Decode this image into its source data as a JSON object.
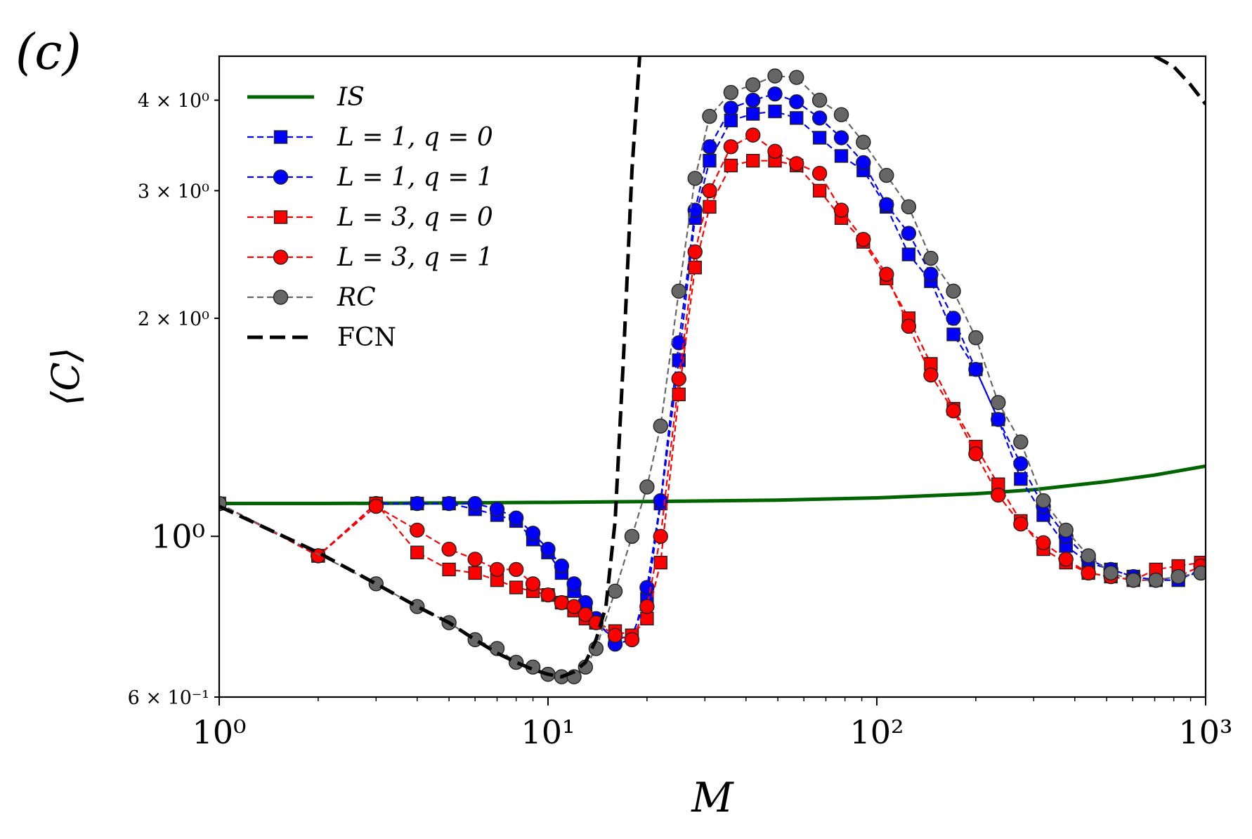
{
  "panel_label": "(c)",
  "chart_data": {
    "type": "line",
    "x_scale": "log",
    "y_scale": "log",
    "xlabel": "M",
    "ylabel": "⟨C⟩",
    "xlim": [
      1,
      1000
    ],
    "ylim": [
      0.6,
      4.6
    ],
    "x_ticks": [
      {
        "value": 1,
        "label": "10⁰"
      },
      {
        "value": 10,
        "label": "10¹"
      },
      {
        "value": 100,
        "label": "10²"
      },
      {
        "value": 1000,
        "label": "10³"
      }
    ],
    "y_ticks": [
      {
        "value": 0.6,
        "label": "6 × 10⁻¹"
      },
      {
        "value": 1,
        "label": "10⁰"
      },
      {
        "value": 2,
        "label": "2 × 10⁰"
      },
      {
        "value": 3,
        "label": "3 × 10⁰"
      },
      {
        "value": 4,
        "label": "4 × 10⁰"
      }
    ],
    "series": [
      {
        "name": "IS",
        "color": "#006400",
        "style": "solid",
        "marker": "none",
        "x": [
          1,
          2,
          5,
          10,
          20,
          50,
          100,
          200,
          300,
          500,
          700,
          1000
        ],
        "y": [
          1.11,
          1.11,
          1.112,
          1.114,
          1.117,
          1.122,
          1.13,
          1.145,
          1.16,
          1.19,
          1.215,
          1.25
        ]
      },
      {
        "name": "L = 1,  q = 0",
        "color": "#0000ff",
        "style": "dashed",
        "marker": "square",
        "x": [
          1,
          2,
          3,
          4,
          5,
          6,
          7,
          8,
          9,
          10,
          11,
          12,
          13,
          14,
          16,
          18,
          20,
          22,
          25,
          28,
          31,
          36,
          42,
          49,
          57,
          67,
          78,
          91,
          107,
          125,
          146,
          171,
          200,
          234,
          274,
          321,
          376,
          440,
          515,
          603,
          706,
          826,
          967
        ],
        "y": [
          1.11,
          0.94,
          1.11,
          1.11,
          1.11,
          1.09,
          1.07,
          1.05,
          0.99,
          0.95,
          0.89,
          0.84,
          0.79,
          0.76,
          0.72,
          0.73,
          0.82,
          1.11,
          1.75,
          2.75,
          3.3,
          3.75,
          3.83,
          3.86,
          3.78,
          3.55,
          3.35,
          3.2,
          2.85,
          2.45,
          2.25,
          1.9,
          1.7,
          1.45,
          1.2,
          1.07,
          0.97,
          0.92,
          0.9,
          0.88,
          0.87,
          0.87,
          0.9
        ]
      },
      {
        "name": "L = 1,  q = 1",
        "color": "#0000ff",
        "style": "dashed",
        "marker": "circle",
        "x": [
          1,
          2,
          3,
          4,
          5,
          6,
          7,
          8,
          9,
          10,
          11,
          12,
          13,
          14,
          16,
          18,
          20,
          22,
          25,
          28,
          31,
          36,
          42,
          49,
          57,
          67,
          78,
          91,
          107,
          125,
          146,
          171,
          200,
          234,
          274,
          321,
          376,
          440,
          515,
          603,
          706,
          826,
          967
        ],
        "y": [
          1.11,
          0.94,
          1.11,
          1.11,
          1.11,
          1.11,
          1.09,
          1.06,
          1.01,
          0.96,
          0.91,
          0.86,
          0.81,
          0.77,
          0.71,
          0.72,
          0.85,
          1.12,
          1.85,
          2.82,
          3.45,
          3.9,
          4.0,
          4.08,
          3.98,
          3.78,
          3.55,
          3.28,
          2.87,
          2.62,
          2.3,
          2.0,
          1.7,
          1.45,
          1.26,
          1.1,
          1.0,
          0.93,
          0.9,
          0.88,
          0.87,
          0.88,
          0.89
        ]
      },
      {
        "name": "L = 3,  q = 0",
        "color": "#ff0000",
        "style": "dashed",
        "marker": "square",
        "x": [
          1,
          2,
          3,
          4,
          5,
          6,
          7,
          8,
          9,
          10,
          11,
          12,
          13,
          14,
          16,
          18,
          20,
          22,
          25,
          28,
          31,
          36,
          42,
          49,
          57,
          67,
          78,
          91,
          107,
          125,
          146,
          171,
          200,
          234,
          274,
          321,
          376,
          440,
          515,
          603,
          706,
          826,
          967
        ],
        "y": [
          1.11,
          0.94,
          1.11,
          0.95,
          0.9,
          0.89,
          0.87,
          0.85,
          0.84,
          0.83,
          0.81,
          0.79,
          0.77,
          0.76,
          0.74,
          0.73,
          0.77,
          0.92,
          1.57,
          2.35,
          2.85,
          3.25,
          3.3,
          3.3,
          3.25,
          3.0,
          2.75,
          2.55,
          2.27,
          2.0,
          1.73,
          1.5,
          1.33,
          1.18,
          1.05,
          0.96,
          0.92,
          0.89,
          0.88,
          0.87,
          0.9,
          0.91,
          0.92
        ]
      },
      {
        "name": "L = 3,  q = 1",
        "color": "#ff0000",
        "style": "dashed",
        "marker": "circle",
        "x": [
          1,
          2,
          3,
          4,
          5,
          6,
          7,
          8,
          9,
          10,
          11,
          12,
          13,
          14,
          16,
          18,
          20,
          22,
          25,
          28,
          31,
          36,
          42,
          49,
          57,
          67,
          78,
          91,
          107,
          125,
          146,
          171,
          200,
          234,
          274,
          321,
          376,
          440,
          515,
          603,
          706,
          826,
          967
        ],
        "y": [
          1.11,
          0.94,
          1.1,
          1.02,
          0.96,
          0.93,
          0.9,
          0.9,
          0.86,
          0.83,
          0.81,
          0.8,
          0.78,
          0.76,
          0.73,
          0.72,
          0.8,
          1.0,
          1.65,
          2.47,
          3.0,
          3.45,
          3.58,
          3.4,
          3.27,
          3.17,
          2.82,
          2.57,
          2.3,
          1.95,
          1.67,
          1.49,
          1.3,
          1.14,
          1.04,
          0.98,
          0.93,
          0.89,
          0.88,
          0.87,
          0.87,
          0.88,
          0.91
        ]
      },
      {
        "name": "RC",
        "color": "#666666",
        "style": "dashed",
        "marker": "circle",
        "x": [
          1,
          3,
          4,
          5,
          6,
          7,
          8,
          9,
          10,
          11,
          12,
          13,
          14,
          16,
          18,
          20,
          22,
          25,
          28,
          31,
          36,
          42,
          49,
          57,
          67,
          78,
          91,
          107,
          125,
          146,
          171,
          200,
          234,
          274,
          321,
          376,
          440,
          515,
          603,
          706,
          826,
          967
        ],
        "y": [
          1.11,
          0.86,
          0.8,
          0.76,
          0.72,
          0.7,
          0.67,
          0.66,
          0.645,
          0.64,
          0.64,
          0.66,
          0.7,
          0.84,
          1.0,
          1.17,
          1.42,
          2.18,
          3.12,
          3.8,
          4.1,
          4.2,
          4.32,
          4.3,
          4.0,
          3.82,
          3.5,
          3.15,
          2.85,
          2.42,
          2.18,
          1.88,
          1.53,
          1.35,
          1.12,
          1.02,
          0.94,
          0.89,
          0.87,
          0.87,
          0.88,
          0.89
        ]
      },
      {
        "name": "FCN",
        "color": "#000000",
        "style": "bigdash",
        "marker": "none",
        "x": [
          1,
          2,
          3,
          4,
          5,
          6,
          7,
          8,
          9,
          10,
          11,
          12,
          13,
          14,
          15,
          16,
          17,
          18,
          19,
          700,
          800,
          900,
          1000
        ],
        "y": [
          1.1,
          0.95,
          0.86,
          0.8,
          0.76,
          0.72,
          0.69,
          0.67,
          0.655,
          0.645,
          0.64,
          0.65,
          0.67,
          0.72,
          0.8,
          1.05,
          1.8,
          3.2,
          4.6,
          4.6,
          4.45,
          4.2,
          3.95
        ]
      }
    ],
    "legend": {
      "position": "upper-left"
    }
  }
}
